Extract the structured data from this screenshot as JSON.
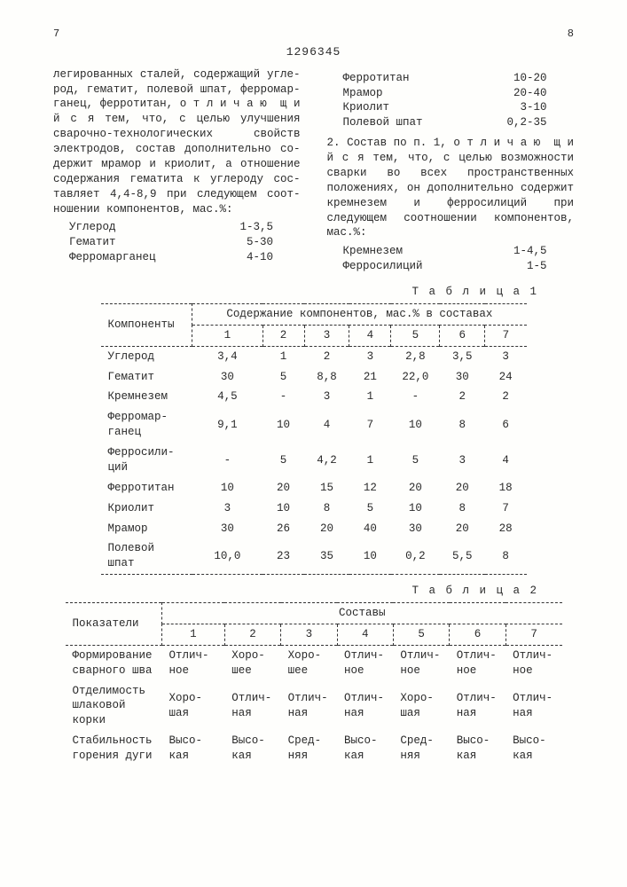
{
  "header": {
    "left_page": "7",
    "right_page": "8",
    "patent_no": "1296345"
  },
  "col_left": {
    "para": "легированных сталей, содержащий угле­род, гематит, полевой шпат, ферромар­ганец, ферротитан, о т л и ч а ю ­ щ и й с я  тем, что, с целью улучше­ния сварочно-технологических свойств электродов, состав дополнительно со­держит мрамор и криолит, а отношение содержания гематита к углероду сос­тавляет 4,4-8,9 при следующем соот­ношении компонентов, мас.%:",
    "list": [
      {
        "n": "Углерод",
        "v": "1-3,5"
      },
      {
        "n": "Гематит",
        "v": "5-30"
      },
      {
        "n": "Ферромарганец",
        "v": "4-10"
      }
    ]
  },
  "col_right": {
    "list_top": [
      {
        "n": "Ферротитан",
        "v": "10-20"
      },
      {
        "n": "Мрамор",
        "v": "20-40"
      },
      {
        "n": "Криолит",
        "v": "3-10"
      },
      {
        "n": "Полевой шпат",
        "v": "0,2-35"
      }
    ],
    "para": "2. Состав по п. 1, о т л и ч а ю ­ щ и й с я  тем, что, с целью возмож­ности сварки во всех пространствен­ных положениях, он дополнительно со­держит кремнезем и ферросилиций при следующем соотношении компонентов, мас.%:",
    "list_bot": [
      {
        "n": "Кремнезем",
        "v": "1-4,5"
      },
      {
        "n": "Ферросилиций",
        "v": "1-5"
      }
    ]
  },
  "line_marks": {
    "five": "5",
    "ten": "10"
  },
  "table1": {
    "label": "Т а б л и ц а 1",
    "head_comp": "Компоненты",
    "head_span": "Содержание компонентов, мас.% в составах",
    "cols": [
      "1",
      "2",
      "3",
      "4",
      "5",
      "6",
      "7"
    ],
    "rows": [
      {
        "n": "Углерод",
        "v": [
          "3,4",
          "1",
          "2",
          "3",
          "2,8",
          "3,5",
          "3"
        ]
      },
      {
        "n": "Гематит",
        "v": [
          "30",
          "5",
          "8,8",
          "21",
          "22,0",
          "30",
          "24"
        ]
      },
      {
        "n": "Кремнезем",
        "v": [
          "4,5",
          "-",
          "3",
          "1",
          "-",
          "2",
          "2"
        ]
      },
      {
        "n": "Ферромар­ганец",
        "v": [
          "9,1",
          "10",
          "4",
          "7",
          "10",
          "8",
          "6"
        ]
      },
      {
        "n": "Ферросили­ций",
        "v": [
          "-",
          "5",
          "4,2",
          "1",
          "5",
          "3",
          "4"
        ]
      },
      {
        "n": "Ферротитан",
        "v": [
          "10",
          "20",
          "15",
          "12",
          "20",
          "20",
          "18"
        ]
      },
      {
        "n": "Криолит",
        "v": [
          "3",
          "10",
          "8",
          "5",
          "10",
          "8",
          "7"
        ]
      },
      {
        "n": "Мрамор",
        "v": [
          "30",
          "26",
          "20",
          "40",
          "30",
          "20",
          "28"
        ]
      },
      {
        "n": "Полевой шпат",
        "v": [
          "10,0",
          "23",
          "35",
          "10",
          "0,2",
          "5,5",
          "8"
        ]
      }
    ]
  },
  "table2": {
    "label": "Т а б л и ц а 2",
    "head_ind": "Показатели",
    "head_span": "Составы",
    "cols": [
      "1",
      "2",
      "3",
      "4",
      "5",
      "6",
      "7"
    ],
    "rows": [
      {
        "n": "Формирование сварного шва",
        "v": [
          "Отлич­ное",
          "Хоро­шее",
          "Хоро­шее",
          "Отлич­ное",
          "Отлич­ное",
          "Отлич­ное",
          "Отлич­ное"
        ]
      },
      {
        "n": "Отделимость шлаковой корки",
        "v": [
          "Хоро­шая",
          "Отлич­ная",
          "Отлич­ная",
          "Отлич­ная",
          "Хоро­шая",
          "Отлич­ная",
          "Отлич­ная"
        ]
      },
      {
        "n": "Стабильность горения дуги",
        "v": [
          "Высо­кая",
          "Высо­кая",
          "Сред­няя",
          "Высо­кая",
          "Сред­няя",
          "Высо­кая",
          "Высо­кая"
        ]
      }
    ]
  }
}
